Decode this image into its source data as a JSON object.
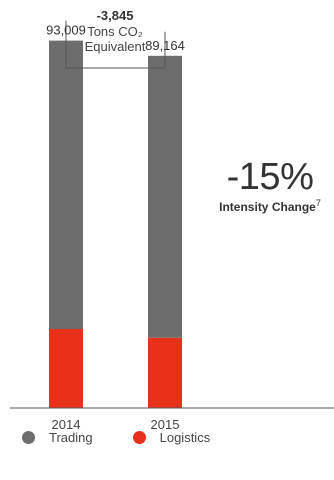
{
  "chart_data": {
    "type": "bar",
    "stacked": true,
    "categories": [
      "2014",
      "2015"
    ],
    "totals": [
      93009,
      89164
    ],
    "total_labels": [
      "93,009",
      "89,164"
    ],
    "series": [
      {
        "name": "Logistics",
        "color": "#e8311a",
        "values": [
          20000,
          17800
        ]
      },
      {
        "name": "Trading",
        "color": "#6d6d6d",
        "values": [
          73009,
          71364
        ]
      }
    ],
    "ylim": [
      0,
      100000
    ],
    "grid": false,
    "legend_position": "bottom-left",
    "annotations": {
      "difference_value": "-3,845",
      "difference_unit_line1": "Tons CO₂",
      "difference_unit_line2": "Equivalent",
      "intensity_percent": "-15%",
      "intensity_label": "Intensity Change",
      "intensity_footnote": "7"
    }
  },
  "legend": [
    {
      "label": "Trading",
      "color": "#6d6d6d"
    },
    {
      "label": "Logistics",
      "color": "#e8311a"
    }
  ]
}
